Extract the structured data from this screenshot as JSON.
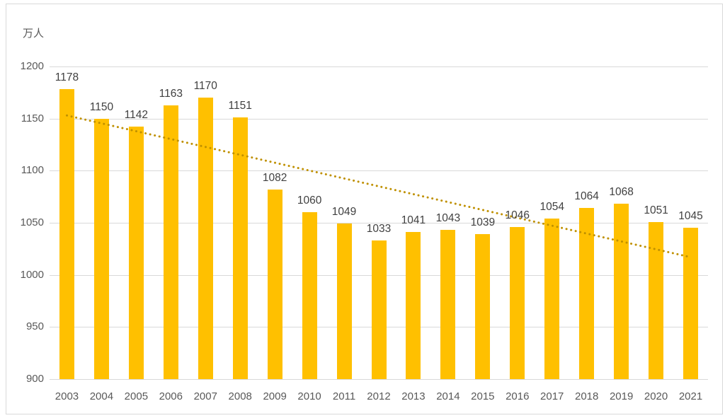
{
  "chart_data": {
    "type": "bar",
    "title": "",
    "unit_label": "万人",
    "categories": [
      "2003",
      "2004",
      "2005",
      "2006",
      "2007",
      "2008",
      "2009",
      "2010",
      "2011",
      "2012",
      "2013",
      "2014",
      "2015",
      "2016",
      "2017",
      "2018",
      "2019",
      "2020",
      "2021"
    ],
    "values": [
      1178,
      1150,
      1142,
      1163,
      1170,
      1151,
      1082,
      1060,
      1049,
      1033,
      1041,
      1043,
      1039,
      1046,
      1054,
      1064,
      1068,
      1051,
      1045
    ],
    "data_labels_visible": true,
    "xlabel": "",
    "ylabel": "万人",
    "ylim": [
      900,
      1200
    ],
    "ytick_interval": 50,
    "ytick_labels": [
      "1200",
      "1150",
      "1100",
      "1050",
      "1000",
      "950",
      "900"
    ],
    "grid": true,
    "legend": "none",
    "trendline": {
      "type": "linear",
      "style": "dotted",
      "start_value": 1153,
      "end_value": 1017
    },
    "colors": {
      "bar": "#FFC000",
      "trendline": "#BF9000",
      "gridline": "#D9D9D9",
      "axis_line": "#D9D9D9",
      "axis_text": "#595959",
      "data_label_text": "#404040",
      "chart_border": "#D9D9D9",
      "background": "#FFFFFF"
    }
  }
}
